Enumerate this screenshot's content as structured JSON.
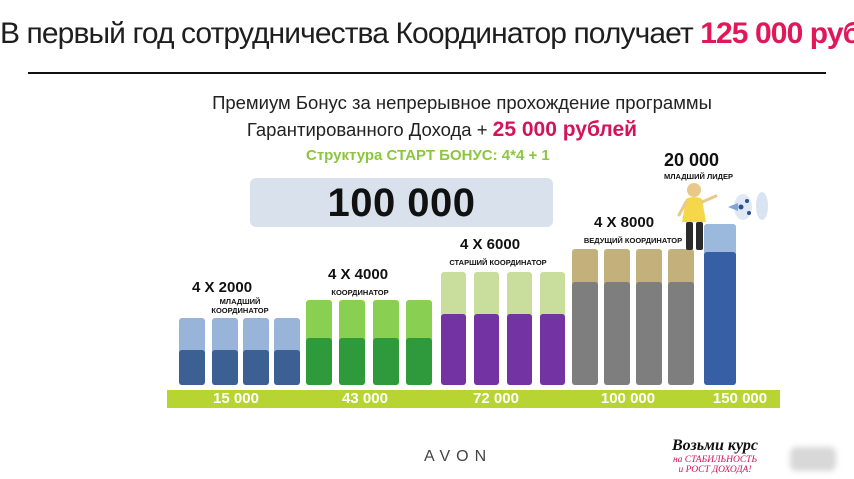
{
  "slide": {
    "headline": "В первый год сотрудничества Координатор получает",
    "headline_amount": "125 000 руб",
    "premium_line1": "Премиум Бонус за непрерывное прохождение программы",
    "premium_line2": "Гарантированного Дохода +",
    "premium_amount": "25 000 рублей",
    "structure": "Структура СТАРТ БОНУС: 4*4 + 1",
    "total": "100 000",
    "leader_amount": "20 000",
    "leader_role": "МЛАДШИЙ ЛИДЕР",
    "logo": "AVON",
    "promo_line1": "Возьми курс",
    "promo_line2": "на СТАБИЛЬНОСТЬ",
    "promo_line3": "и РОСТ ДОХОДА!"
  },
  "levels": [
    {
      "count": "4 X 2000",
      "role_1": "МЛАДШИЙ",
      "role_2": "КООРДИНАТОР",
      "cumulative": "15 000"
    },
    {
      "count": "4 X 4000",
      "role_1": "КООРДИНАТОР",
      "role_2": "",
      "cumulative": "43 000"
    },
    {
      "count": "4 X 6000",
      "role_1": "СТАРШИЙ КООРДИНАТОР",
      "role_2": "",
      "cumulative": "72 000"
    },
    {
      "count": "4 X 8000",
      "role_1": "ВЕДУЩИЙ КООРДИНАТОР",
      "role_2": "",
      "cumulative": "100 000"
    },
    {
      "count": "",
      "role_1": "",
      "role_2": "",
      "cumulative": "150 000"
    }
  ],
  "colors": {
    "accent": "#e0185a",
    "structure": "#8cc63f",
    "base_bar": "#b7d433",
    "level1_dark": "#3c5f94",
    "level1_light": "#98b4d8",
    "level2_dark": "#2f9a3b",
    "level2_light": "#88cf52",
    "level3_dark": "#7433a3",
    "level3_light": "#c9dd9c",
    "level4_dark": "#7e7e7e",
    "level4_light": "#c2b17b",
    "level5_dark": "#365fa6",
    "level5_light": "#9ab9dd"
  }
}
